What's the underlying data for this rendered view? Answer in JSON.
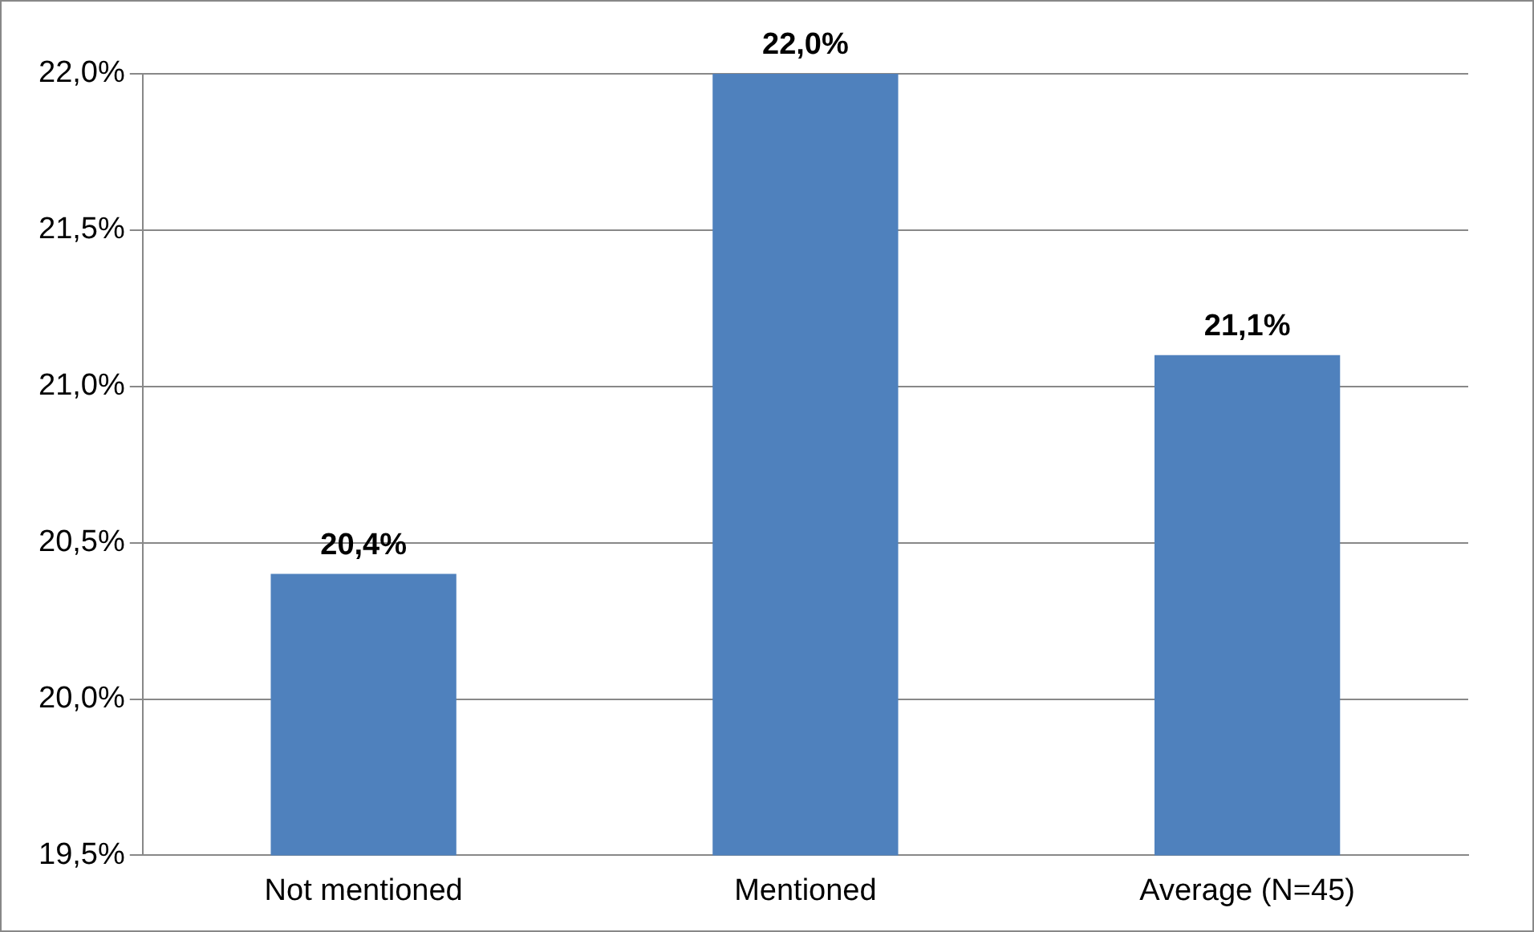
{
  "chart_data": {
    "type": "bar",
    "categories": [
      "Not mentioned",
      "Mentioned",
      "Average (N=45)"
    ],
    "values": [
      20.4,
      22.0,
      21.1
    ],
    "value_labels": [
      "20,4%",
      "22,0%",
      "21,1%"
    ],
    "color": "#4f81bd",
    "ylim": [
      19.5,
      22.0
    ],
    "yticks": [
      {
        "value": 19.5,
        "label": "19,5%"
      },
      {
        "value": 20.0,
        "label": "20,0%"
      },
      {
        "value": 20.5,
        "label": "20,5%"
      },
      {
        "value": 21.0,
        "label": "21,0%"
      },
      {
        "value": 21.5,
        "label": "21,5%"
      },
      {
        "value": 22.0,
        "label": "22,0%"
      }
    ],
    "grid": "y",
    "legend": false
  }
}
